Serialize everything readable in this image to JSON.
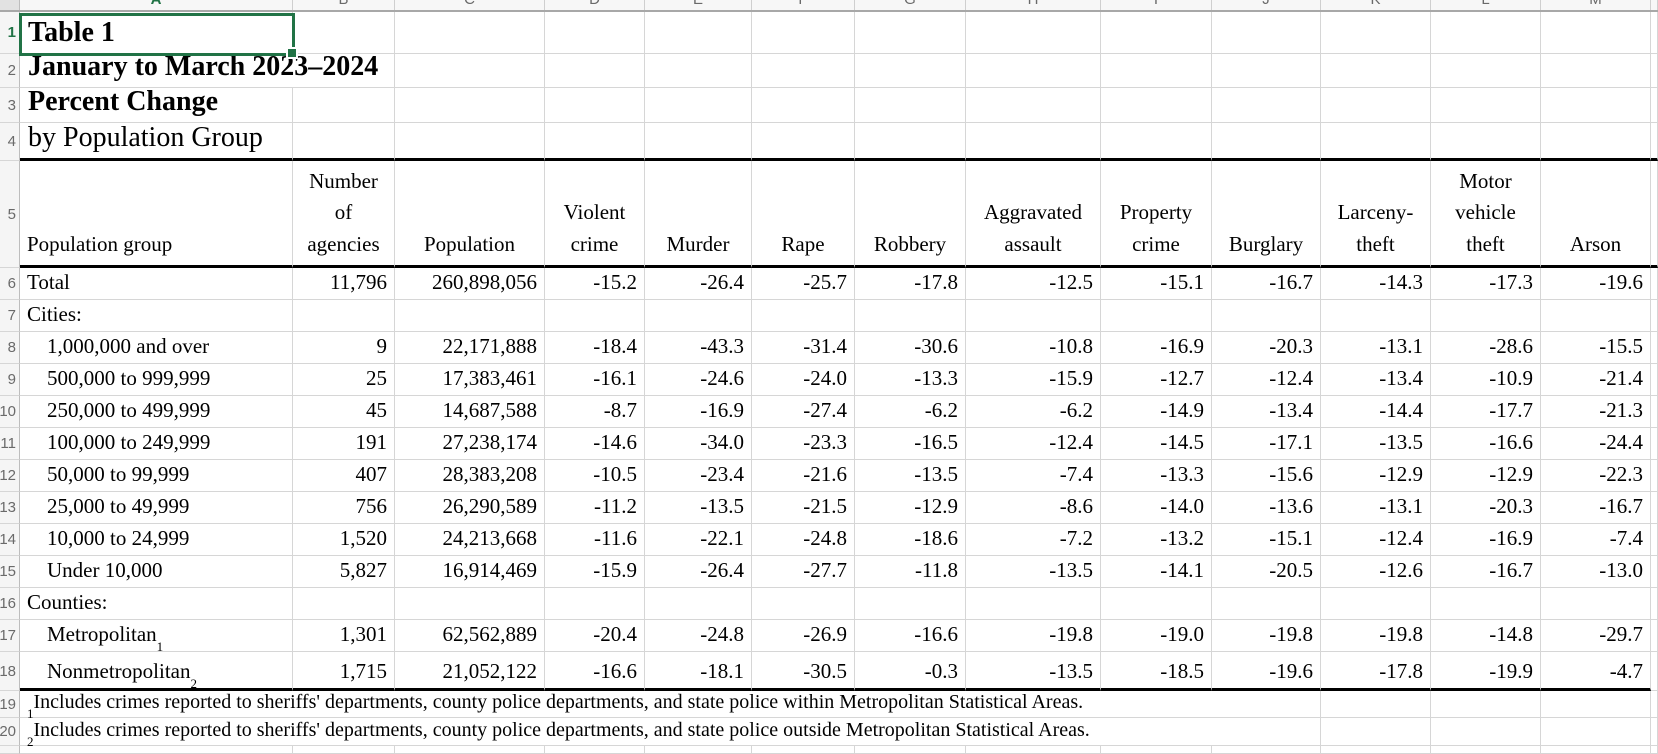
{
  "app": {
    "type": "spreadsheet",
    "active_cell": "A1"
  },
  "colors": {
    "accent_green": "#217346",
    "gridline": "#d6d6d6"
  },
  "columns": {
    "letters": [
      "A",
      "B",
      "C",
      "D",
      "E",
      "F",
      "G",
      "H",
      "I",
      "J",
      "K",
      "L",
      "M"
    ]
  },
  "row_numbers": [
    "1",
    "2",
    "3",
    "4",
    "5",
    "6",
    "7",
    "8",
    "9",
    "10",
    "11",
    "12",
    "13",
    "14",
    "15",
    "16",
    "17",
    "18",
    "19",
    "20",
    ""
  ],
  "titles": [
    {
      "row": "1",
      "text": "Table 1",
      "bold": true
    },
    {
      "row": "2",
      "text": "January to March 2023–2024",
      "bold": true
    },
    {
      "row": "3",
      "text": "Percent Change",
      "bold": true
    },
    {
      "row": "4",
      "text": "by Population Group",
      "bold": false
    }
  ],
  "table": {
    "header": [
      "Population group",
      "Number\nof\nagencies",
      "Population",
      "Violent\ncrime",
      "Murder",
      "Rape",
      "Robbery",
      "Aggravated\nassault",
      "Property\ncrime",
      "Burglary",
      "Larceny-\ntheft",
      "Motor\nvehicle\ntheft",
      "Arson"
    ],
    "rows": [
      {
        "label": "Total",
        "indent": false,
        "sup": "",
        "values": [
          "11,796",
          "260,898,056",
          "-15.2",
          "-26.4",
          "-25.7",
          "-17.8",
          "-12.5",
          "-15.1",
          "-16.7",
          "-14.3",
          "-17.3",
          "-19.6"
        ]
      },
      {
        "label": "Cities:",
        "indent": false,
        "sup": "",
        "values": [
          "",
          "",
          "",
          "",
          "",
          "",
          "",
          "",
          "",
          "",
          "",
          ""
        ]
      },
      {
        "label": "1,000,000 and over",
        "indent": true,
        "sup": "",
        "values": [
          "9",
          "22,171,888",
          "-18.4",
          "-43.3",
          "-31.4",
          "-30.6",
          "-10.8",
          "-16.9",
          "-20.3",
          "-13.1",
          "-28.6",
          "-15.5"
        ]
      },
      {
        "label": "500,000 to 999,999",
        "indent": true,
        "sup": "",
        "values": [
          "25",
          "17,383,461",
          "-16.1",
          "-24.6",
          "-24.0",
          "-13.3",
          "-15.9",
          "-12.7",
          "-12.4",
          "-13.4",
          "-10.9",
          "-21.4"
        ]
      },
      {
        "label": "250,000 to 499,999",
        "indent": true,
        "sup": "",
        "values": [
          "45",
          "14,687,588",
          "-8.7",
          "-16.9",
          "-27.4",
          "-6.2",
          "-6.2",
          "-14.9",
          "-13.4",
          "-14.4",
          "-17.7",
          "-21.3"
        ]
      },
      {
        "label": "100,000 to 249,999",
        "indent": true,
        "sup": "",
        "values": [
          "191",
          "27,238,174",
          "-14.6",
          "-34.0",
          "-23.3",
          "-16.5",
          "-12.4",
          "-14.5",
          "-17.1",
          "-13.5",
          "-16.6",
          "-24.4"
        ]
      },
      {
        "label": "50,000 to 99,999",
        "indent": true,
        "sup": "",
        "values": [
          "407",
          "28,383,208",
          "-10.5",
          "-23.4",
          "-21.6",
          "-13.5",
          "-7.4",
          "-13.3",
          "-15.6",
          "-12.9",
          "-12.9",
          "-22.3"
        ]
      },
      {
        "label": "25,000 to 49,999",
        "indent": true,
        "sup": "",
        "values": [
          "756",
          "26,290,589",
          "-11.2",
          "-13.5",
          "-21.5",
          "-12.9",
          "-8.6",
          "-14.0",
          "-13.6",
          "-13.1",
          "-20.3",
          "-16.7"
        ]
      },
      {
        "label": "10,000 to 24,999",
        "indent": true,
        "sup": "",
        "values": [
          "1,520",
          "24,213,668",
          "-11.6",
          "-22.1",
          "-24.8",
          "-18.6",
          "-7.2",
          "-13.2",
          "-15.1",
          "-12.4",
          "-16.9",
          "-7.4"
        ]
      },
      {
        "label": "Under 10,000",
        "indent": true,
        "sup": "",
        "values": [
          "5,827",
          "16,914,469",
          "-15.9",
          "-26.4",
          "-27.7",
          "-11.8",
          "-13.5",
          "-14.1",
          "-20.5",
          "-12.6",
          "-16.7",
          "-13.0"
        ]
      },
      {
        "label": "Counties:",
        "indent": false,
        "sup": "",
        "values": [
          "",
          "",
          "",
          "",
          "",
          "",
          "",
          "",
          "",
          "",
          "",
          ""
        ]
      },
      {
        "label": "Metropolitan",
        "indent": true,
        "sup": "1",
        "values": [
          "1,301",
          "62,562,889",
          "-20.4",
          "-24.8",
          "-26.9",
          "-16.6",
          "-19.8",
          "-19.0",
          "-19.8",
          "-19.8",
          "-14.8",
          "-29.7"
        ]
      },
      {
        "label": "Nonmetropolitan",
        "indent": true,
        "sup": "2",
        "values": [
          "1,715",
          "21,052,122",
          "-16.6",
          "-18.1",
          "-30.5",
          "-0.3",
          "-13.5",
          "-18.5",
          "-19.6",
          "-17.8",
          "-19.9",
          "-4.7"
        ]
      }
    ]
  },
  "footnotes": [
    {
      "sup": "1",
      "text": "Includes crimes reported to sheriffs' departments, county police departments, and state police within Metropolitan Statistical Areas."
    },
    {
      "sup": "2",
      "text": "Includes crimes reported to sheriffs' departments, county police departments, and state police outside Metropolitan Statistical Areas."
    }
  ]
}
